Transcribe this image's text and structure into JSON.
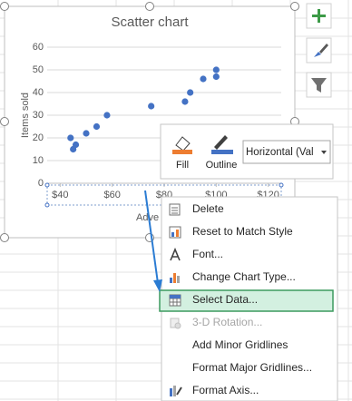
{
  "chart_data": {
    "type": "scatter",
    "title": "Scatter chart",
    "y_label": "Items sold",
    "x_label": "Adve",
    "x": [
      44,
      45,
      46,
      50,
      54,
      58,
      75,
      88,
      90,
      95,
      100,
      100
    ],
    "values": [
      20,
      15,
      17,
      22,
      25,
      30,
      34,
      36,
      40,
      46,
      47,
      50
    ],
    "color": "#4472c4",
    "xlim": [
      35,
      125
    ],
    "ylim": [
      0,
      60
    ],
    "xticks": [
      {
        "value": 40,
        "label": "$40"
      },
      {
        "value": 60,
        "label": "$60"
      },
      {
        "value": 80,
        "label": "$80"
      },
      {
        "value": 100,
        "label": "$100"
      },
      {
        "value": 120,
        "label": "$120"
      }
    ],
    "yticks": [
      0,
      10,
      20,
      30,
      40,
      50,
      60
    ],
    "grid": true
  },
  "format_toolbar": {
    "fill": "Fill",
    "outline": "Outline",
    "dropdown": "Horizontal (Val"
  },
  "context_menu": {
    "highlighted_item": 4,
    "items": [
      {
        "label": "Delete",
        "enabled": true
      },
      {
        "label": "Reset to Match Style",
        "enabled": true
      },
      {
        "label": "Font...",
        "enabled": true
      },
      {
        "label": "Change Chart Type...",
        "enabled": true
      },
      {
        "label": "Select Data...",
        "enabled": true
      },
      {
        "label": "3-D Rotation...",
        "enabled": false
      },
      {
        "label": "Add Minor Gridlines",
        "enabled": true
      },
      {
        "label": "Format Major Gridlines...",
        "enabled": true
      },
      {
        "label": "Format Axis...",
        "enabled": true
      }
    ]
  }
}
